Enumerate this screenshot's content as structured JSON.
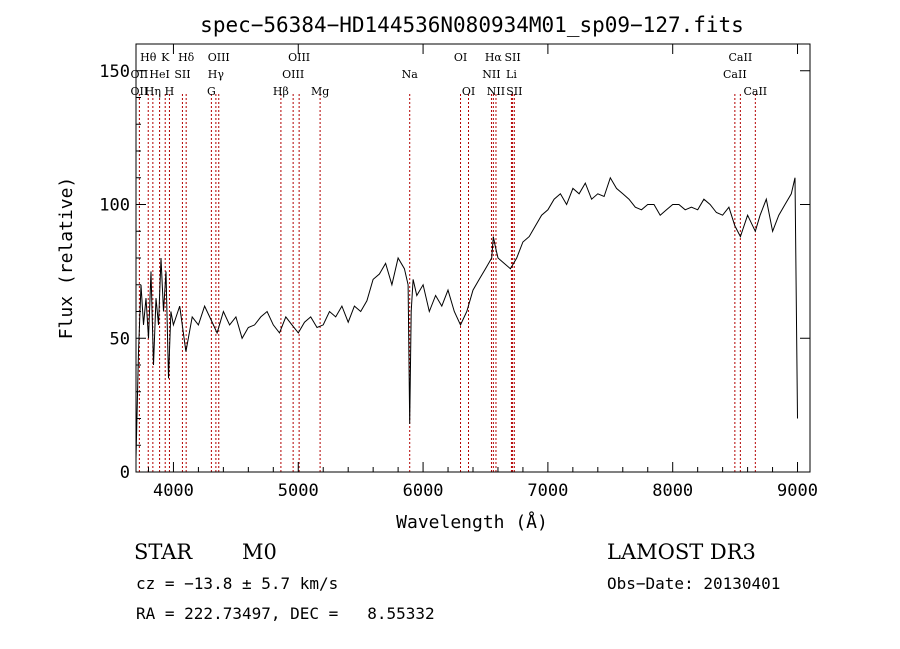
{
  "chart_data": {
    "type": "line",
    "title": "spec−56384−HD144536N080934M01_sp09−127.fits",
    "xlabel": "Wavelength (Å)",
    "ylabel": "Flux (relative)",
    "xlim": [
      3700,
      9100
    ],
    "ylim": [
      0,
      160
    ],
    "xticks": [
      4000,
      5000,
      6000,
      7000,
      8000,
      9000
    ],
    "yticks": [
      0,
      50,
      100,
      150
    ],
    "grid": false,
    "series": [
      {
        "x": [
          3700,
          3720,
          3740,
          3760,
          3780,
          3800,
          3820,
          3840,
          3860,
          3880,
          3900,
          3920,
          3940,
          3960,
          3980,
          4000,
          4050,
          4100,
          4150,
          4200,
          4250,
          4300,
          4350,
          4400,
          4450,
          4500,
          4550,
          4600,
          4650,
          4700,
          4750,
          4800,
          4850,
          4900,
          4950,
          5000,
          5050,
          5100,
          5150,
          5200,
          5250,
          5300,
          5350,
          5400,
          5450,
          5500,
          5550,
          5600,
          5650,
          5700,
          5750,
          5800,
          5850,
          5880,
          5893,
          5905,
          5920,
          5950,
          6000,
          6050,
          6100,
          6150,
          6200,
          6250,
          6300,
          6350,
          6400,
          6450,
          6500,
          6550,
          6563,
          6580,
          6600,
          6650,
          6700,
          6750,
          6800,
          6850,
          6900,
          6950,
          7000,
          7050,
          7100,
          7150,
          7200,
          7250,
          7300,
          7350,
          7400,
          7450,
          7500,
          7550,
          7600,
          7650,
          7700,
          7750,
          7800,
          7850,
          7900,
          7950,
          8000,
          8050,
          8100,
          8150,
          8200,
          8250,
          8300,
          8350,
          8400,
          8450,
          8498,
          8542,
          8600,
          8662,
          8700,
          8750,
          8800,
          8850,
          8900,
          8950,
          8980,
          9000
        ],
        "y": [
          5,
          45,
          70,
          55,
          65,
          50,
          75,
          40,
          65,
          55,
          80,
          60,
          75,
          35,
          60,
          55,
          62,
          45,
          58,
          55,
          62,
          57,
          52,
          60,
          55,
          58,
          50,
          54,
          55,
          58,
          60,
          55,
          52,
          58,
          55,
          52,
          56,
          58,
          54,
          55,
          60,
          58,
          62,
          56,
          62,
          60,
          64,
          72,
          74,
          78,
          70,
          80,
          76,
          70,
          18,
          60,
          72,
          66,
          70,
          60,
          66,
          62,
          68,
          60,
          55,
          60,
          68,
          72,
          76,
          80,
          88,
          84,
          80,
          78,
          76,
          80,
          86,
          88,
          92,
          96,
          98,
          102,
          104,
          100,
          106,
          104,
          108,
          102,
          104,
          103,
          110,
          106,
          104,
          102,
          99,
          98,
          100,
          100,
          96,
          98,
          100,
          100,
          98,
          99,
          98,
          102,
          100,
          97,
          96,
          99,
          92,
          88,
          96,
          90,
          96,
          102,
          90,
          96,
          100,
          104,
          110,
          20
        ]
      }
    ],
    "line_labels": [
      {
        "text": "Hθ",
        "x": 3798,
        "row": 1
      },
      {
        "text": "K",
        "x": 3934,
        "row": 1
      },
      {
        "text": "Hδ",
        "x": 4102,
        "row": 1
      },
      {
        "text": "OIII",
        "x": 4363,
        "row": 1
      },
      {
        "text": "OIII",
        "x": 5007,
        "row": 1
      },
      {
        "text": "OI",
        "x": 6300,
        "row": 1
      },
      {
        "text": "Hα",
        "x": 6563,
        "row": 1
      },
      {
        "text": "SII",
        "x": 6717,
        "row": 1
      },
      {
        "text": "CaII",
        "x": 8542,
        "row": 1
      },
      {
        "text": "OII",
        "x": 3727,
        "row": 2
      },
      {
        "text": "HeI",
        "x": 3889,
        "row": 2
      },
      {
        "text": "SII",
        "x": 4072,
        "row": 2
      },
      {
        "text": "Hγ",
        "x": 4340,
        "row": 2
      },
      {
        "text": "OIII",
        "x": 4959,
        "row": 2
      },
      {
        "text": "Na",
        "x": 5893,
        "row": 2
      },
      {
        "text": "NII",
        "x": 6548,
        "row": 2
      },
      {
        "text": "Li",
        "x": 6708,
        "row": 2
      },
      {
        "text": "CaII",
        "x": 8498,
        "row": 2
      },
      {
        "text": "OII",
        "x": 3727,
        "row": 3
      },
      {
        "text": "Hη",
        "x": 3835,
        "row": 3
      },
      {
        "text": "H",
        "x": 3968,
        "row": 3
      },
      {
        "text": "G",
        "x": 4304,
        "row": 3
      },
      {
        "text": "Hβ",
        "x": 4861,
        "row": 3
      },
      {
        "text": "Mg",
        "x": 5175,
        "row": 3
      },
      {
        "text": "OI",
        "x": 6364,
        "row": 3
      },
      {
        "text": "NII",
        "x": 6584,
        "row": 3
      },
      {
        "text": "SII",
        "x": 6731,
        "row": 3
      },
      {
        "text": "CaII",
        "x": 8662,
        "row": 3
      }
    ],
    "line_markers": [
      3727,
      3798,
      3835,
      3889,
      3934,
      3968,
      4072,
      4102,
      4304,
      4340,
      4363,
      4861,
      4959,
      5007,
      5175,
      5893,
      6300,
      6364,
      6548,
      6563,
      6584,
      6708,
      6717,
      6731,
      8498,
      8542,
      8662
    ],
    "colors": {
      "spectrum": "#000000",
      "marker": "#b30000",
      "axes": "#000000"
    }
  },
  "info": {
    "object_class": "STAR",
    "subclass": "M0",
    "survey": "LAMOST DR3",
    "cz": "cz = −13.8 ± 5.7 km/s",
    "obs_date": "Obs−Date: 20130401",
    "coords": "RA = 222.73497, DEC =   8.55332"
  }
}
